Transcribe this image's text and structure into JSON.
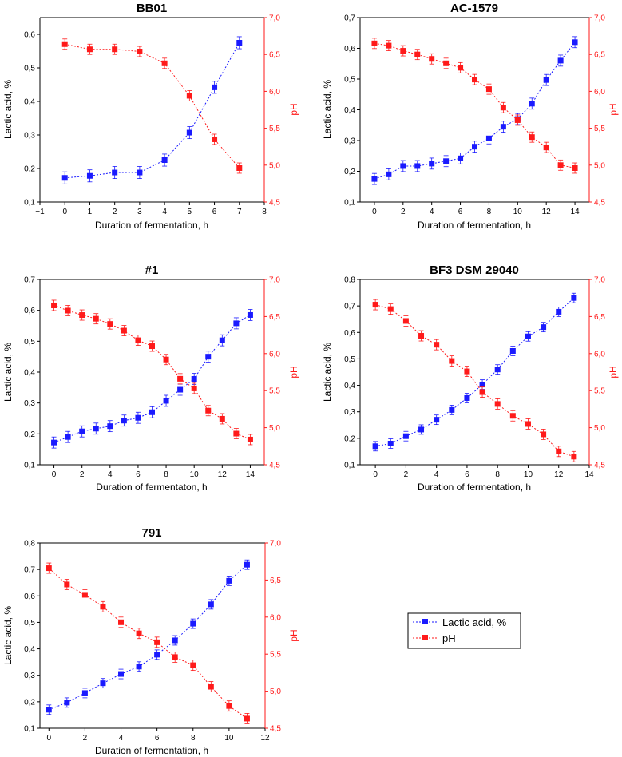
{
  "colors": {
    "lactic": "#1a1aff",
    "ph": "#ff1a1a",
    "axis": "#000000"
  },
  "legend": {
    "lactic_label": "Lactic acid, %",
    "ph_label": "pH"
  },
  "chart_data": [
    {
      "type": "scatter",
      "title": "BB01",
      "xlabel": "Duration of fermentation, h",
      "ylabel": "Lactic acid, %",
      "y2label": "pH",
      "xlim": [
        -1,
        8
      ],
      "xticks": [
        -1,
        0,
        1,
        2,
        3,
        4,
        5,
        6,
        7,
        8
      ],
      "ylim": [
        0.1,
        0.65
      ],
      "yticks": [
        "0,1",
        "0,2",
        "0,3",
        "0,4",
        "0,5",
        "0,6"
      ],
      "y2lim": [
        4.5,
        7.0
      ],
      "y2ticks": [
        "4,5",
        "5,0",
        "5,5",
        "6,0",
        "6,5",
        "7,0"
      ],
      "series": [
        {
          "name": "Lactic acid, %",
          "axis": "left",
          "x": [
            0,
            1,
            2,
            3,
            4,
            5,
            6,
            7
          ],
          "y": [
            0.172,
            0.178,
            0.188,
            0.188,
            0.225,
            0.307,
            0.442,
            0.575
          ],
          "err": 0.018
        },
        {
          "name": "pH",
          "axis": "right",
          "x": [
            0,
            1,
            2,
            3,
            4,
            5,
            6,
            7
          ],
          "y": [
            6.64,
            6.57,
            6.57,
            6.54,
            6.38,
            5.94,
            5.35,
            4.96
          ],
          "err": 0.07
        }
      ]
    },
    {
      "type": "scatter",
      "title": "AC-1579",
      "xlabel": "Duration of fermentation, h",
      "ylabel": "Lactic acid, %",
      "y2label": "pH",
      "xlim": [
        -1,
        15
      ],
      "xticks": [
        0,
        2,
        4,
        6,
        8,
        10,
        12,
        14
      ],
      "ylim": [
        0.1,
        0.7
      ],
      "yticks": [
        "0,1",
        "0,2",
        "0,3",
        "0,4",
        "0,5",
        "0,6",
        "0,7"
      ],
      "y2lim": [
        4.5,
        7.0
      ],
      "y2ticks": [
        "4,5",
        "5,0",
        "5,5",
        "6,0",
        "6,5",
        "7,0"
      ],
      "series": [
        {
          "name": "Lactic acid, %",
          "axis": "left",
          "x": [
            0,
            1,
            2,
            3,
            4,
            5,
            6,
            7,
            8,
            9,
            10,
            11,
            12,
            13,
            14
          ],
          "y": [
            0.175,
            0.19,
            0.217,
            0.217,
            0.225,
            0.233,
            0.242,
            0.28,
            0.307,
            0.345,
            0.37,
            0.42,
            0.497,
            0.56,
            0.62
          ],
          "err": 0.018
        },
        {
          "name": "pH",
          "axis": "right",
          "x": [
            0,
            1,
            2,
            3,
            4,
            5,
            6,
            7,
            8,
            9,
            10,
            11,
            12,
            13,
            14
          ],
          "y": [
            6.65,
            6.62,
            6.55,
            6.5,
            6.44,
            6.38,
            6.32,
            6.16,
            6.03,
            5.78,
            5.61,
            5.38,
            5.24,
            5.0,
            4.96
          ],
          "err": 0.07
        }
      ]
    },
    {
      "type": "scatter",
      "title": "#1",
      "xlabel": "Duration of fermentaton, h",
      "ylabel": "Lactic acid, %",
      "y2label": "pH",
      "xlim": [
        -1,
        15
      ],
      "xticks": [
        0,
        2,
        4,
        6,
        8,
        10,
        12,
        14
      ],
      "ylim": [
        0.1,
        0.7
      ],
      "yticks": [
        "0,1",
        "0,2",
        "0,3",
        "0,4",
        "0,5",
        "0,6",
        "0,7"
      ],
      "y2lim": [
        4.5,
        7.0
      ],
      "y2ticks": [
        "4,5",
        "5,0",
        "5,5",
        "6,0",
        "6,5",
        "7,0"
      ],
      "series": [
        {
          "name": "Lactic acid, %",
          "axis": "left",
          "x": [
            0,
            1,
            2,
            3,
            4,
            5,
            6,
            7,
            8,
            9,
            10,
            11,
            12,
            13,
            14
          ],
          "y": [
            0.172,
            0.19,
            0.208,
            0.217,
            0.225,
            0.243,
            0.252,
            0.27,
            0.307,
            0.343,
            0.378,
            0.45,
            0.503,
            0.558,
            0.585
          ],
          "err": 0.018
        },
        {
          "name": "pH",
          "axis": "right",
          "x": [
            0,
            1,
            2,
            3,
            4,
            5,
            6,
            7,
            8,
            9,
            10,
            11,
            12,
            13,
            14
          ],
          "y": [
            6.65,
            6.58,
            6.52,
            6.47,
            6.4,
            6.31,
            6.18,
            6.1,
            5.92,
            5.66,
            5.53,
            5.23,
            5.12,
            4.92,
            4.84
          ],
          "err": 0.07
        }
      ]
    },
    {
      "type": "scatter",
      "title": "BF3 DSM 29040",
      "xlabel": "Duration of fermentation, h",
      "ylabel": "Lactic acid, %",
      "y2label": "pH",
      "xlim": [
        -1,
        14
      ],
      "xticks": [
        0,
        2,
        4,
        6,
        8,
        10,
        12,
        14
      ],
      "ylim": [
        0.1,
        0.8
      ],
      "yticks": [
        "0,1",
        "0,2",
        "0,3",
        "0,4",
        "0,5",
        "0,6",
        "0,7",
        "0,8"
      ],
      "y2lim": [
        4.5,
        7.0
      ],
      "y2ticks": [
        "4,5",
        "5,0",
        "5,5",
        "6,0",
        "6,5",
        "7,0"
      ],
      "series": [
        {
          "name": "Lactic acid, %",
          "axis": "left",
          "x": [
            0,
            1,
            2,
            3,
            4,
            5,
            6,
            7,
            8,
            9,
            10,
            11,
            12,
            13
          ],
          "y": [
            0.17,
            0.18,
            0.208,
            0.233,
            0.27,
            0.307,
            0.352,
            0.403,
            0.46,
            0.53,
            0.585,
            0.62,
            0.678,
            0.73
          ],
          "err": 0.018
        },
        {
          "name": "pH",
          "axis": "right",
          "x": [
            0,
            1,
            2,
            3,
            4,
            5,
            6,
            7,
            8,
            9,
            10,
            11,
            12,
            13
          ],
          "y": [
            6.66,
            6.6,
            6.44,
            6.24,
            6.12,
            5.9,
            5.76,
            5.48,
            5.32,
            5.16,
            5.05,
            4.91,
            4.68,
            4.61
          ],
          "err": 0.07
        }
      ]
    },
    {
      "type": "scatter",
      "title": "791",
      "xlabel": "Duration of fermentation, h",
      "ylabel": "Lactic acid, %",
      "y2label": "pH",
      "xlim": [
        -0.5,
        12
      ],
      "xticks": [
        0,
        2,
        4,
        6,
        8,
        10,
        12
      ],
      "ylim": [
        0.1,
        0.8
      ],
      "yticks": [
        "0,1",
        "0,2",
        "0,3",
        "0,4",
        "0,5",
        "0,6",
        "0,7",
        "0,8"
      ],
      "y2lim": [
        4.5,
        7.0
      ],
      "y2ticks": [
        "4,5",
        "5,0",
        "5,5",
        "6,0",
        "6,5",
        "7,0"
      ],
      "series": [
        {
          "name": "Lactic acid, %",
          "axis": "left",
          "x": [
            0,
            1,
            2,
            3,
            4,
            5,
            6,
            7,
            8,
            9,
            10,
            11
          ],
          "y": [
            0.17,
            0.197,
            0.233,
            0.27,
            0.305,
            0.333,
            0.378,
            0.432,
            0.495,
            0.568,
            0.657,
            0.718
          ],
          "err": 0.018
        },
        {
          "name": "pH",
          "axis": "right",
          "x": [
            0,
            1,
            2,
            3,
            4,
            5,
            6,
            7,
            8,
            9,
            10,
            11
          ],
          "y": [
            6.66,
            6.44,
            6.3,
            6.14,
            5.93,
            5.78,
            5.66,
            5.46,
            5.35,
            5.06,
            4.8,
            4.63
          ],
          "err": 0.07
        }
      ]
    }
  ]
}
